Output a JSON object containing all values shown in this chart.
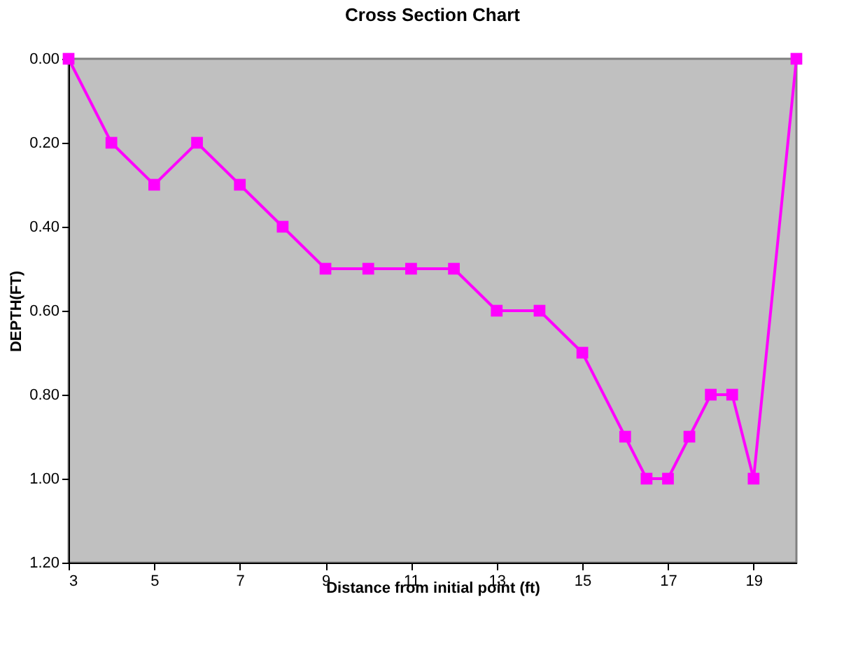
{
  "chart_data": {
    "type": "line",
    "title": "Cross Section Chart",
    "xlabel": "Distance from initial point (ft)",
    "ylabel": "DEPTH(FT)",
    "x": [
      3,
      4,
      5,
      6,
      7,
      8,
      9,
      10,
      11,
      12,
      13,
      14,
      15,
      16,
      16.5,
      17,
      17.5,
      18,
      18.5,
      19,
      20
    ],
    "series": [
      {
        "color": "#ff00ff",
        "values": [
          0,
          0.2,
          0.3,
          0.2,
          0.3,
          0.4,
          0.5,
          0.5,
          0.5,
          0.5,
          0.6,
          0.6,
          0.7,
          0.9,
          1.0,
          1.0,
          0.9,
          0.8,
          0.8,
          1.0,
          0
        ]
      }
    ],
    "xlim": [
      3,
      20
    ],
    "xticks": [
      3,
      5,
      7,
      9,
      11,
      13,
      15,
      17,
      19
    ],
    "ylim": [
      1.2,
      0
    ],
    "yticks": [
      {
        "value": 0,
        "label": "0.00"
      },
      {
        "value": 0.2,
        "label": "0.20"
      },
      {
        "value": 0.4,
        "label": "0.40"
      },
      {
        "value": 0.6,
        "label": "0.60"
      },
      {
        "value": 0.8,
        "label": "0.80"
      },
      {
        "value": 1.0,
        "label": "1.00"
      },
      {
        "value": 1.2,
        "label": "1.20"
      }
    ],
    "grid": false,
    "marker": "square",
    "line_style": "solid"
  }
}
